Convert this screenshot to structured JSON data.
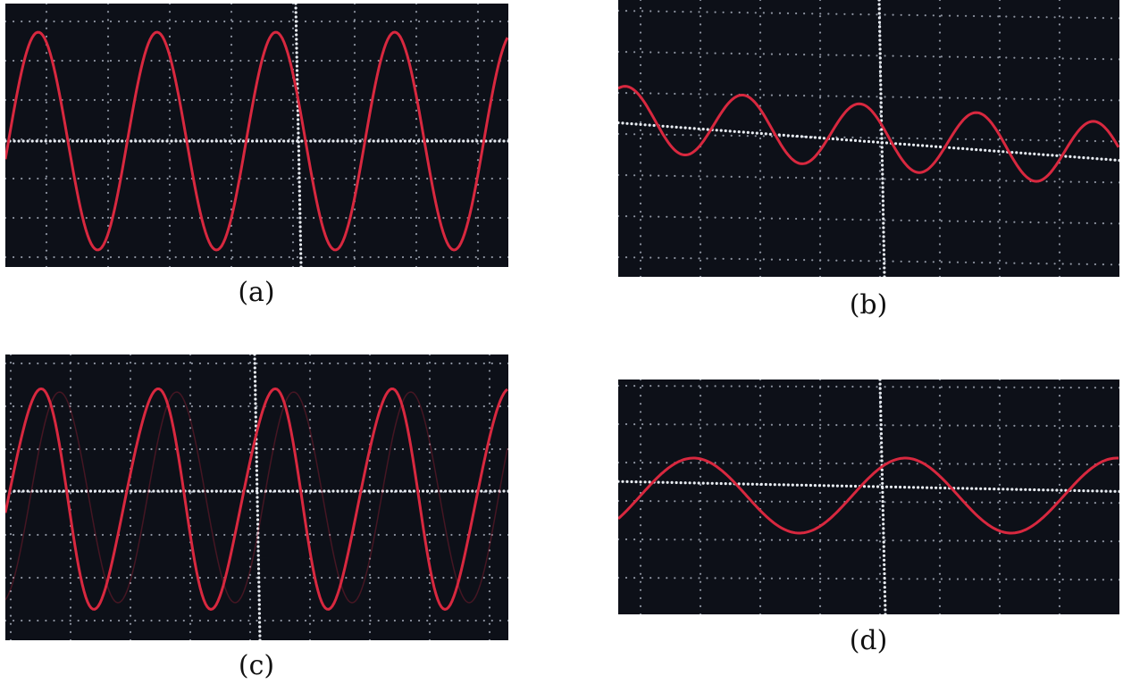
{
  "figure": {
    "panels": [
      {
        "id": "a",
        "caption": "(a)",
        "trace_color": "#d8283f",
        "cycles_visible": 4,
        "amplitude_level": "large"
      },
      {
        "id": "b",
        "caption": "(b)",
        "trace_color": "#d8283f",
        "cycles_visible": 4,
        "amplitude_level": "small"
      },
      {
        "id": "c",
        "caption": "(c)",
        "trace_color": "#d8283f",
        "cycles_visible": 5,
        "amplitude_level": "large"
      },
      {
        "id": "d",
        "caption": "(d)",
        "trace_color": "#d8283f",
        "cycles_visible": 2,
        "amplitude_level": "small"
      }
    ],
    "colors": {
      "screen_background": "#0d1018",
      "grid_dots": "#8d93a0",
      "axis_dots": "#e8ecf2",
      "trace": "#d8283f"
    }
  }
}
